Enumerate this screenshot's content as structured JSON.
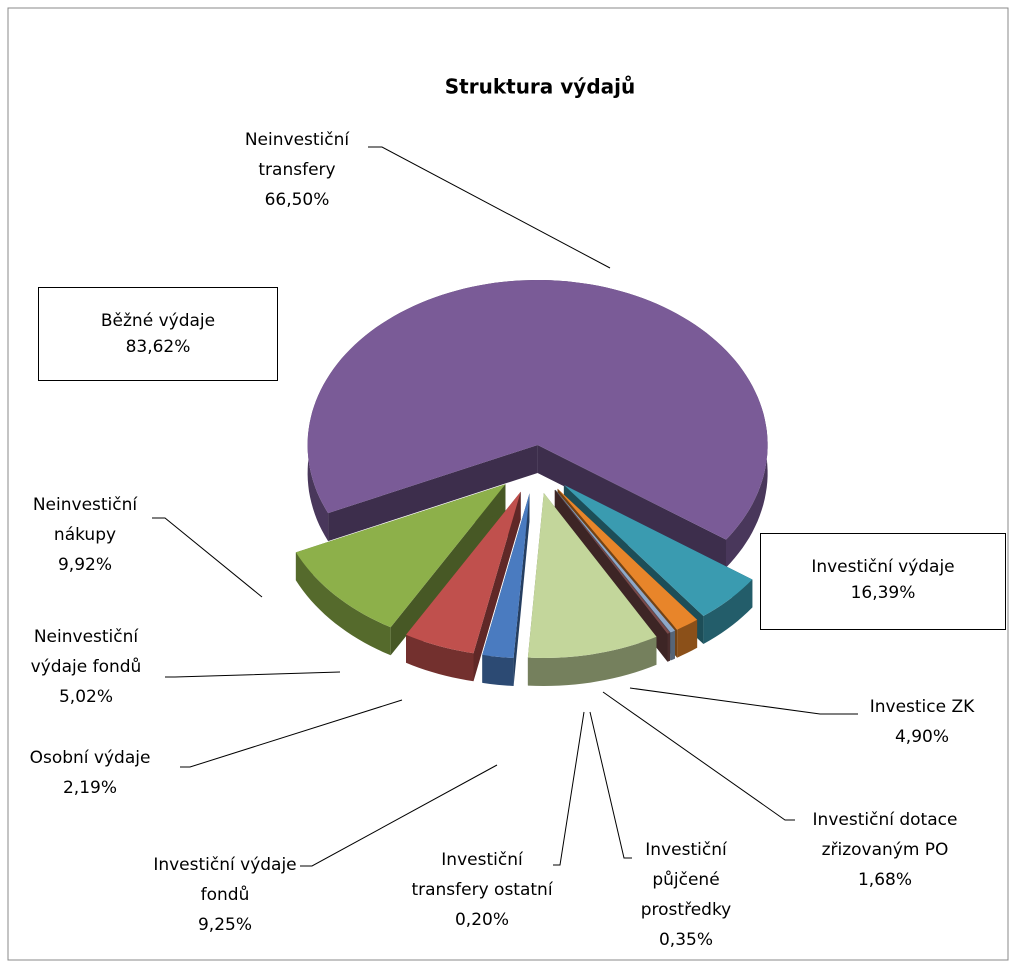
{
  "chart_data": {
    "type": "pie",
    "title": "Struktura výdajů",
    "categories": [
      "Investice ZK",
      "Investiční dotace zřizovaným PO",
      "Investiční půjčené prostředky",
      "Investiční transfery ostatní",
      "Investiční výdaje fondů",
      "Osobní výdaje",
      "Neinvestiční výdaje fondů",
      "Neinvestiční nákupy",
      "Neinvestiční transfery"
    ],
    "values": [
      4.9,
      1.68,
      0.35,
      0.2,
      9.25,
      2.19,
      5.02,
      9.92,
      66.5
    ],
    "value_labels": [
      "4,90%",
      "1,68%",
      "0,35%",
      "0,20%",
      "9,25%",
      "2,19%",
      "5,02%",
      "9,92%",
      "66,50%"
    ],
    "colors": [
      "#3a9bb0",
      "#e8852a",
      "#8fa8c8",
      "#7a4a4a",
      "#c3d69b",
      "#4a7bc0",
      "#c0504d",
      "#8db04a",
      "#7a5b97"
    ],
    "groups": [
      {
        "name": "Běžné výdaje",
        "value": 83.62,
        "value_label": "83,62%"
      },
      {
        "name": "Investiční výdaje",
        "value": 16.39,
        "value_label": "16,39%"
      }
    ]
  }
}
